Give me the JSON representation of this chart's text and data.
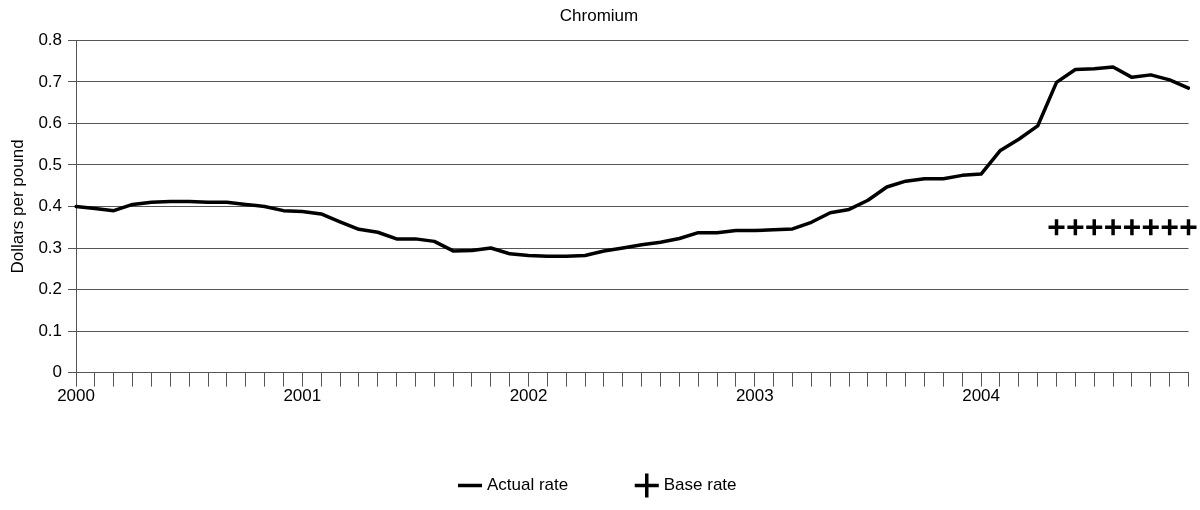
{
  "chart_data": {
    "type": "line",
    "title": "Chromium",
    "ylabel": "Dollars per pound",
    "categories": [
      "2000",
      null,
      null,
      null,
      null,
      null,
      null,
      null,
      null,
      null,
      null,
      null,
      "2001",
      null,
      null,
      null,
      null,
      null,
      null,
      null,
      null,
      null,
      null,
      null,
      "2002",
      null,
      null,
      null,
      null,
      null,
      null,
      null,
      null,
      null,
      null,
      null,
      "2003",
      null,
      null,
      null,
      null,
      null,
      null,
      null,
      null,
      null,
      null,
      null,
      "2004",
      null,
      null,
      null,
      null,
      null,
      null,
      null,
      null,
      null,
      null,
      null
    ],
    "series": [
      {
        "name": "Actual rate",
        "type": "line",
        "color": "#000000",
        "marker": "none",
        "line_style": "solid",
        "values": [
          0.4,
          0.395,
          0.39,
          0.405,
          0.41,
          0.412,
          0.412,
          0.41,
          0.41,
          0.405,
          0.4,
          0.39,
          0.388,
          0.382,
          0.363,
          0.345,
          0.338,
          0.322,
          0.322,
          0.316,
          0.293,
          0.294,
          0.3,
          0.286,
          0.282,
          0.28,
          0.28,
          0.282,
          0.293,
          0.3,
          0.308,
          0.314,
          0.323,
          0.337,
          0.337,
          0.342,
          0.342,
          0.344,
          0.346,
          0.362,
          0.385,
          0.393,
          0.415,
          0.447,
          0.461,
          0.467,
          0.467,
          0.475,
          0.478,
          0.534,
          0.562,
          0.594,
          0.699,
          0.73,
          0.732,
          0.736,
          0.711,
          0.717,
          0.705,
          0.685
        ]
      },
      {
        "name": "Base rate",
        "type": "scatter",
        "color": "#000000",
        "marker": "cross",
        "values": [
          null,
          null,
          null,
          null,
          null,
          null,
          null,
          null,
          null,
          null,
          null,
          null,
          null,
          null,
          null,
          null,
          null,
          null,
          null,
          null,
          null,
          null,
          null,
          null,
          null,
          null,
          null,
          null,
          null,
          null,
          null,
          null,
          null,
          null,
          null,
          null,
          null,
          null,
          null,
          null,
          null,
          null,
          null,
          null,
          null,
          null,
          null,
          null,
          null,
          null,
          null,
          null,
          0.35,
          0.35,
          0.35,
          0.35,
          0.35,
          0.35,
          0.35,
          0.35
        ]
      }
    ],
    "ylim": [
      0,
      0.8
    ],
    "yticks": [
      0,
      0.1,
      0.2,
      0.3,
      0.4,
      0.5,
      0.6,
      0.7,
      0.8
    ],
    "grid": "y",
    "legend": "bottom"
  }
}
